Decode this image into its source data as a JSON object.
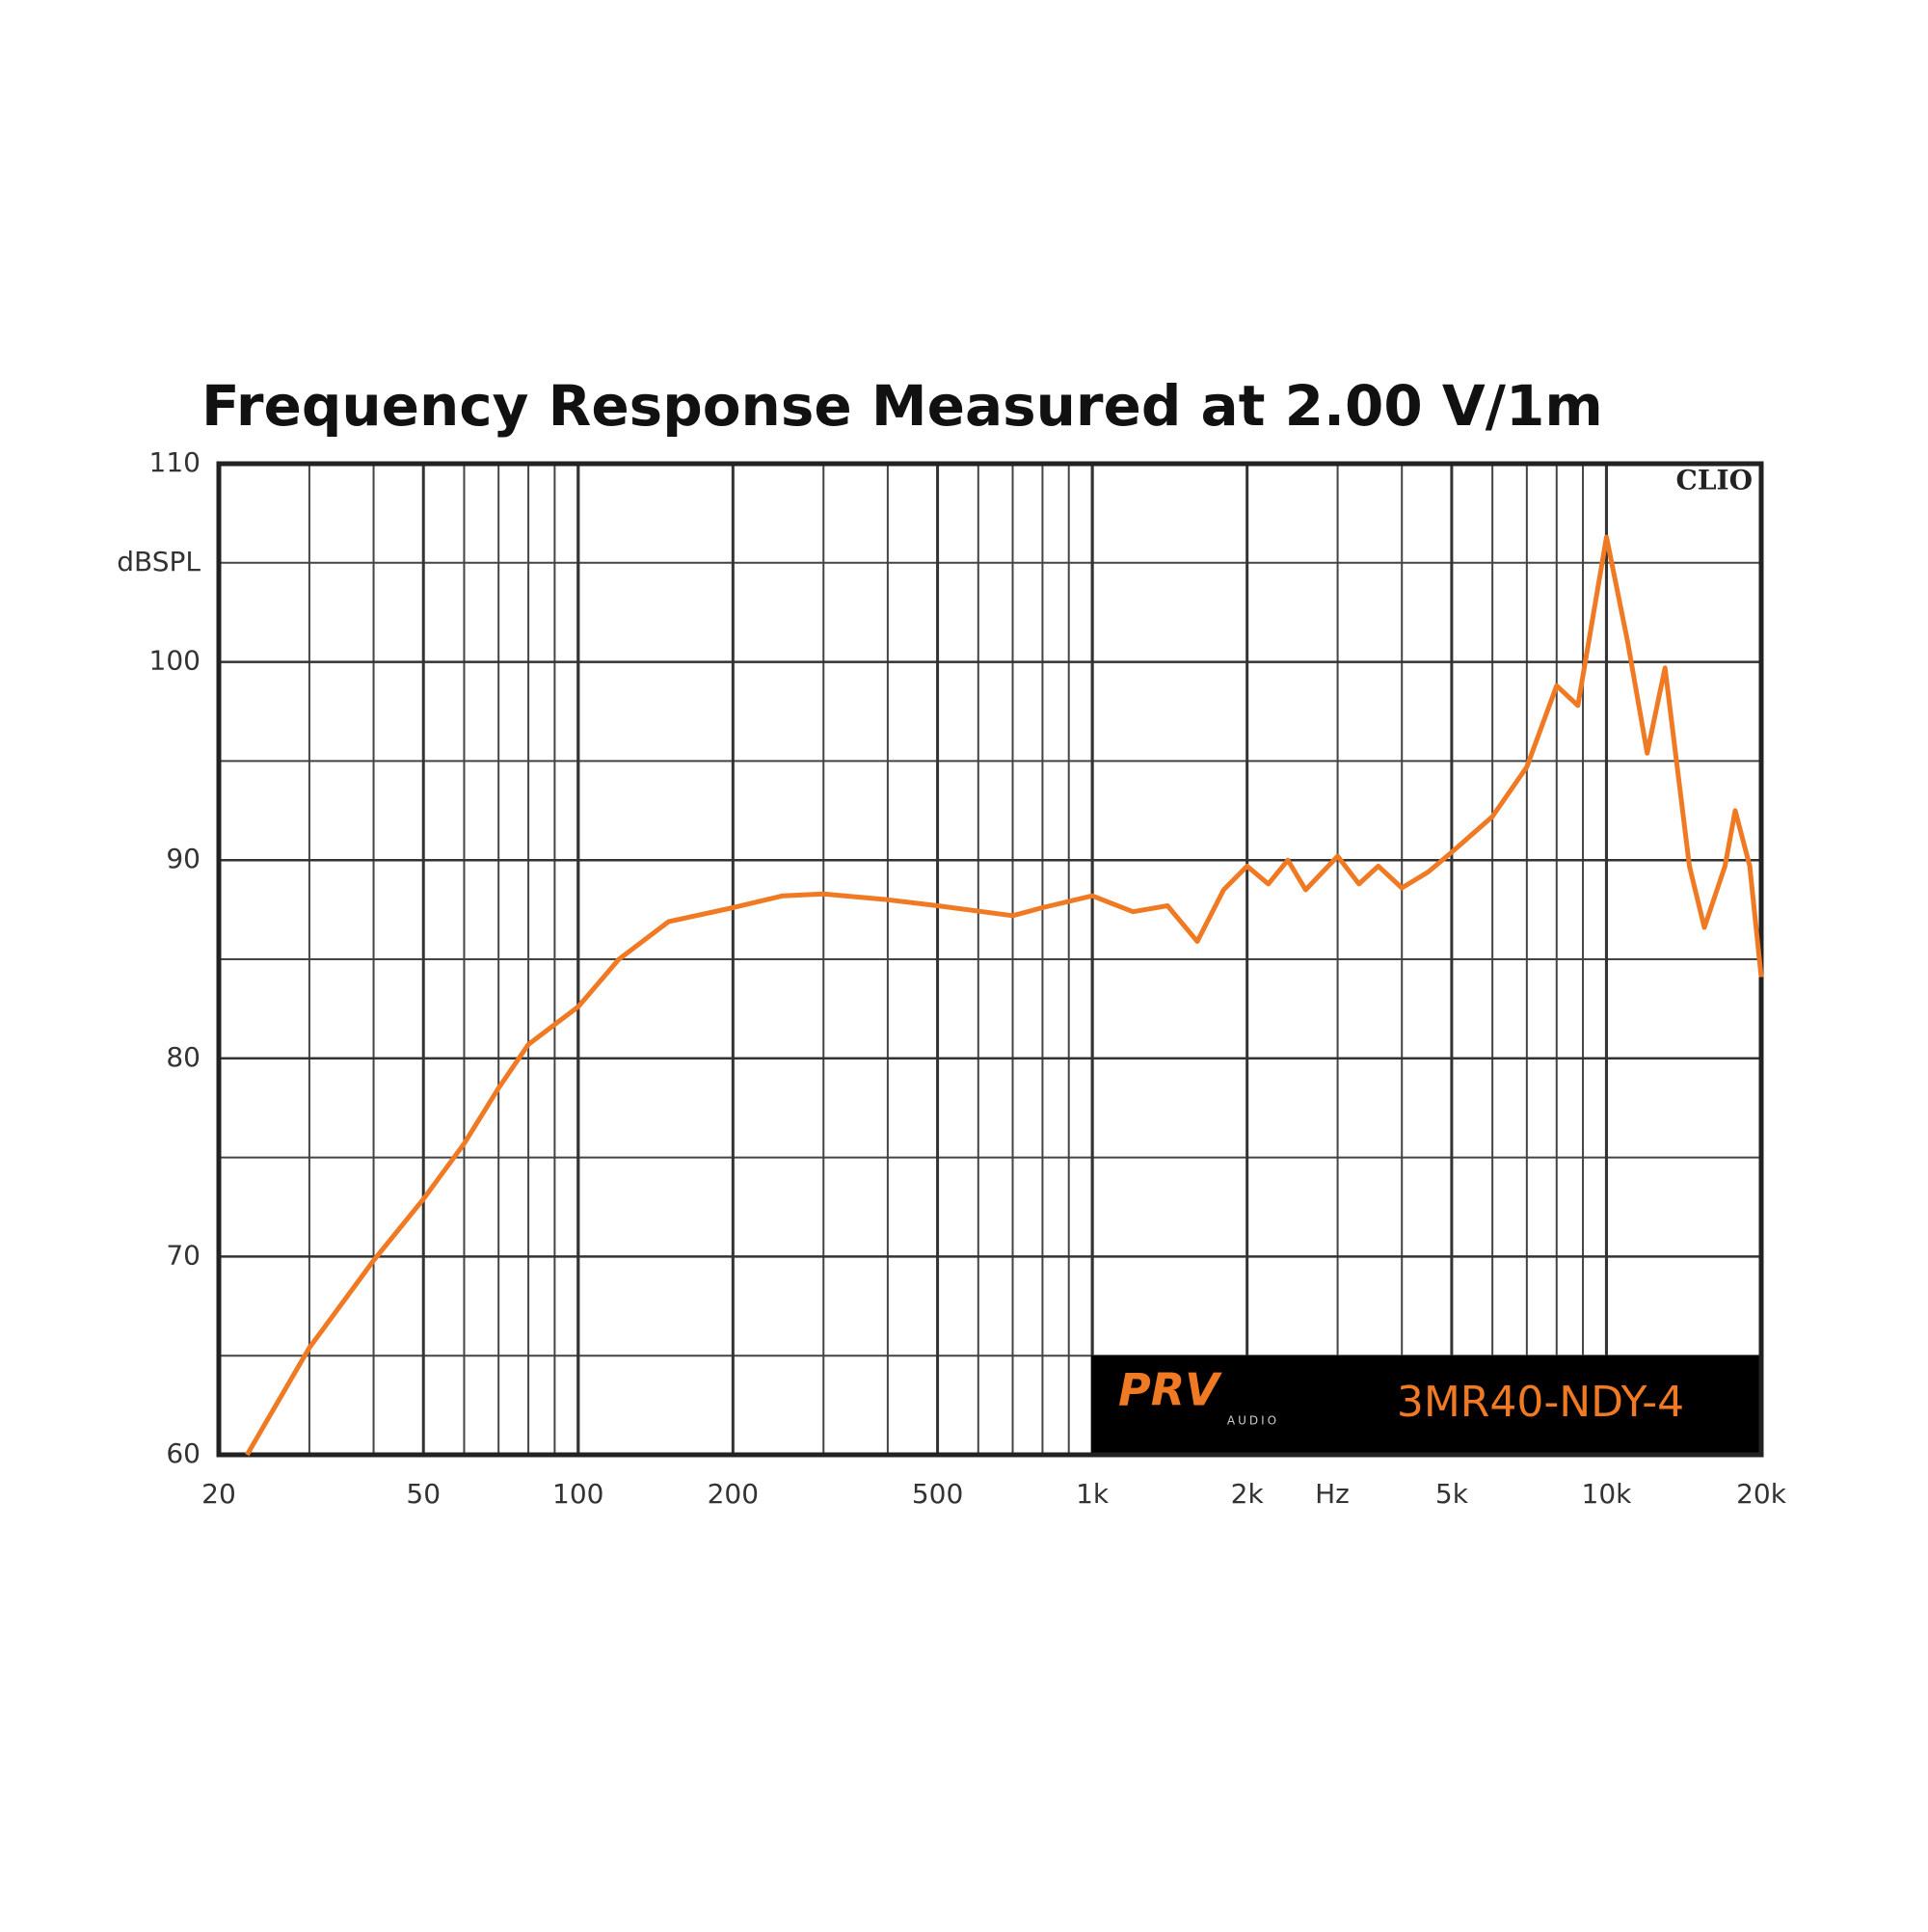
{
  "chart_data": {
    "type": "line",
    "title": "Frequency Response Measured at 2.00 V/1m",
    "y_label": "dBSPL",
    "x_label": "Hz",
    "watermark": "CLIO",
    "logo": {
      "brand": "PRV",
      "sub": "AUDIO"
    },
    "model": "3MR40-NDY-4",
    "x": [
      22.7,
      30,
      40,
      50,
      60,
      70,
      80,
      100,
      120,
      150,
      200,
      250,
      300,
      400,
      500,
      700,
      800,
      1000,
      1200,
      1400,
      1600,
      1800,
      2000,
      2200,
      2400,
      2600,
      3000,
      3300,
      3600,
      4000,
      4500,
      5000,
      6000,
      7000,
      8000,
      8800,
      10000,
      11000,
      12000,
      13000,
      14500,
      15500,
      17000,
      17800,
      19000,
      20000
    ],
    "series": [
      {
        "name": "3MR40-NDY-4",
        "color": "#f07a23",
        "values": [
          60,
          65.4,
          69.8,
          72.9,
          75.7,
          78.5,
          80.7,
          82.6,
          85,
          86.9,
          87.6,
          88.2,
          88.3,
          88,
          87.7,
          87.2,
          87.6,
          88.2,
          87.4,
          87.7,
          85.9,
          88.5,
          89.7,
          88.8,
          90,
          88.5,
          90.2,
          88.8,
          89.7,
          88.6,
          89.4,
          90.4,
          92.2,
          94.7,
          98.8,
          97.8,
          106.3,
          101,
          95.4,
          99.7,
          89.7,
          86.6,
          89.7,
          92.5,
          89.7,
          84.1
        ]
      }
    ],
    "xlim": [
      20,
      20000
    ],
    "ylim": [
      60,
      110
    ],
    "xscale": "log",
    "grid": true,
    "xticks": [
      20,
      50,
      100,
      200,
      500,
      {
        "value": 1000,
        "label": "1k"
      },
      {
        "value": 2000,
        "label": "2k"
      },
      {
        "value": 5000,
        "label": "5k"
      },
      {
        "value": 10000,
        "label": "10k"
      },
      {
        "value": 20000,
        "label": "20k"
      }
    ],
    "yticks": [
      60,
      70,
      80,
      90,
      100,
      110
    ]
  }
}
